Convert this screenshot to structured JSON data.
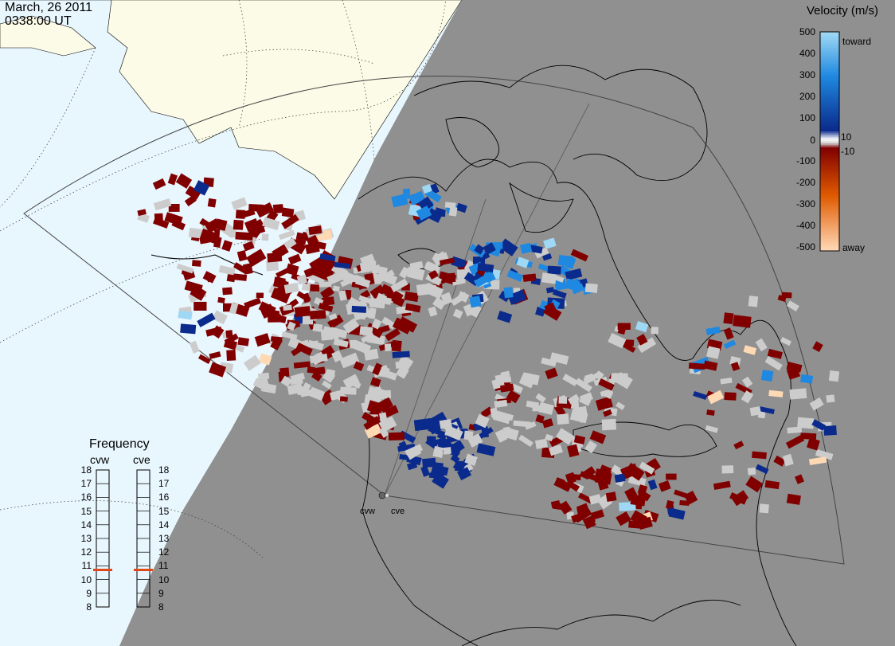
{
  "header": {
    "date": "March, 26 2011",
    "time": "0338:00 UT"
  },
  "colorbar": {
    "title": "Velocity (m/s)",
    "toward_label": "toward",
    "away_label": "away",
    "ticks": [
      "500",
      "400",
      "300",
      "200",
      "100",
      "10",
      "0",
      "-10",
      "-100",
      "-200",
      "-300",
      "-400",
      "-500"
    ],
    "colors": {
      "toward_strong": "#9fd8f5",
      "toward_mid": "#1f88e0",
      "toward_weak": "#0a2a8c",
      "ground_scatter": "#cccccc",
      "away_weak": "#800000",
      "away_mid": "#e05a00",
      "away_strong": "#ffd8b4"
    }
  },
  "frequency": {
    "title": "Frequency",
    "radars": [
      {
        "name": "cvw",
        "frequency_mhz": 10.7
      },
      {
        "name": "cve",
        "frequency_mhz": 10.7
      }
    ],
    "ticks": [
      "18",
      "17",
      "16",
      "15",
      "14",
      "13",
      "12",
      "11",
      "10",
      "9",
      "8"
    ],
    "marker_color": "#e04a1a"
  },
  "radars": [
    {
      "name": "cvw"
    },
    {
      "name": "cve"
    }
  ],
  "map_colors": {
    "ocean_day": "#e8f6fd",
    "land_day": "#fcfbe8",
    "night": "#909090",
    "coast": "#000000"
  }
}
